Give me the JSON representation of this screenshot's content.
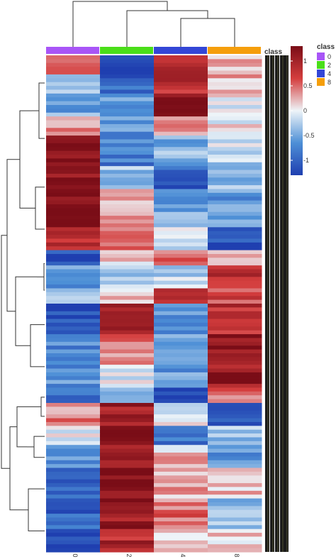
{
  "chart_data": {
    "type": "heatmap",
    "columns": [
      "0",
      "2",
      "4",
      "8"
    ],
    "x_tick_labels": [
      "0",
      "2",
      "4",
      "8"
    ],
    "column_annotation": {
      "title": "class",
      "levels": [
        "0",
        "2",
        "4",
        "8"
      ],
      "colors": {
        "0": "#a855f7",
        "2": "#4ade19",
        "4": "#3346d6",
        "8": "#f59e0b"
      }
    },
    "color_scale": {
      "ticks": [
        "1",
        "0.5",
        "0",
        "-0.5",
        "-1"
      ],
      "tick_values": [
        1,
        0.5,
        0,
        -0.5,
        -1
      ],
      "range": [
        -1.3,
        1.3
      ],
      "low_color": "#1f3fb0",
      "mid_color": "#eef4f8",
      "high_color": "#7a0d17"
    },
    "row_blocks": [
      {
        "rows": 5,
        "values": [
          0.5,
          -1.2,
          1.0,
          0.2
        ]
      },
      {
        "rows": 5,
        "values": [
          -0.2,
          -1.0,
          0.8,
          0.2
        ]
      },
      {
        "rows": 6,
        "values": [
          -0.5,
          -0.6,
          1.3,
          0.0
        ]
      },
      {
        "rows": 5,
        "values": [
          0.3,
          -0.6,
          0.3,
          0.0
        ]
      },
      {
        "rows": 8,
        "values": [
          1.3,
          -0.8,
          -0.4,
          -0.2
        ]
      },
      {
        "rows": 6,
        "values": [
          1.2,
          -0.3,
          -1.0,
          -0.3
        ]
      },
      {
        "rows": 10,
        "values": [
          1.3,
          0.2,
          -0.5,
          -0.6
        ]
      },
      {
        "rows": 6,
        "values": [
          0.9,
          0.6,
          -0.2,
          -1.2
        ]
      },
      {
        "rows": 4,
        "values": [
          -1.2,
          0.1,
          0.6,
          0.2
        ]
      },
      {
        "rows": 6,
        "values": [
          -0.6,
          -0.2,
          -0.2,
          0.9
        ]
      },
      {
        "rows": 4,
        "values": [
          -0.4,
          0.1,
          1.0,
          0.6
        ]
      },
      {
        "rows": 8,
        "values": [
          -1.2,
          1.0,
          -0.6,
          0.8
        ]
      },
      {
        "rows": 8,
        "values": [
          -0.7,
          0.4,
          -0.5,
          1.2
        ]
      },
      {
        "rows": 6,
        "values": [
          -0.6,
          0.0,
          -0.6,
          1.1
        ]
      },
      {
        "rows": 4,
        "values": [
          -0.8,
          -0.3,
          -1.2,
          0.4
        ]
      },
      {
        "rows": 6,
        "values": [
          0.4,
          1.0,
          0.0,
          -1.1
        ]
      },
      {
        "rows": 5,
        "values": [
          0.0,
          1.3,
          -0.8,
          -0.3
        ]
      },
      {
        "rows": 6,
        "values": [
          -0.7,
          1.0,
          0.2,
          -0.6
        ]
      },
      {
        "rows": 8,
        "values": [
          -0.9,
          1.3,
          0.3,
          0.2
        ]
      },
      {
        "rows": 8,
        "values": [
          -1.0,
          1.1,
          0.5,
          -0.3
        ]
      },
      {
        "rows": 6,
        "values": [
          -1.3,
          0.9,
          0.1,
          0.1
        ]
      }
    ]
  }
}
